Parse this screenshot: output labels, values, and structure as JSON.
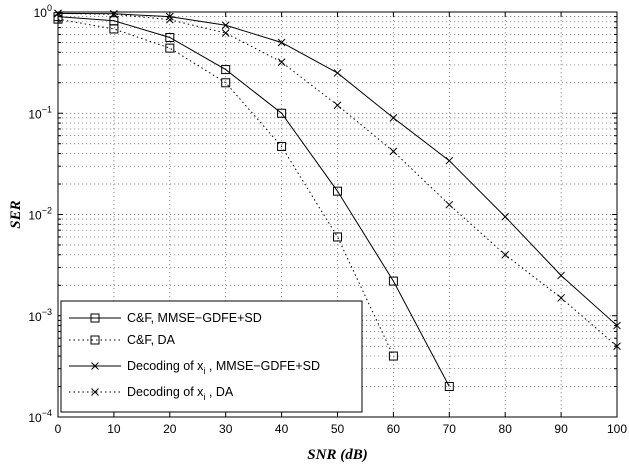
{
  "chart_data": {
    "type": "line",
    "title": "",
    "xlabel": "SNR (dB)",
    "ylabel": "SER",
    "xlim": [
      0,
      100
    ],
    "ylim": [
      0.0001,
      1
    ],
    "yscale": "log",
    "grid": true,
    "legend_position": "bottom-left",
    "x_ticks": [
      "0",
      "10",
      "20",
      "30",
      "40",
      "50",
      "60",
      "70",
      "80",
      "90",
      "100"
    ],
    "y_ticks": [
      {
        "base": "10",
        "exp": "0"
      },
      {
        "base": "10",
        "exp": "−1"
      },
      {
        "base": "10",
        "exp": "−2"
      },
      {
        "base": "10",
        "exp": "−3"
      },
      {
        "base": "10",
        "exp": "−4"
      }
    ],
    "series": [
      {
        "name": "C&F, MMSE−GDFE+SD",
        "name_parts": [
          "C&F, MMSE−GDFE+SD"
        ],
        "line": "solid",
        "marker": "square",
        "x": [
          0,
          10,
          20,
          30,
          40,
          50,
          60,
          70
        ],
        "y": [
          0.9,
          0.82,
          0.56,
          0.27,
          0.1,
          0.017,
          0.0022,
          0.0002
        ]
      },
      {
        "name": "C&F, DA",
        "name_parts": [
          "C&F, DA"
        ],
        "line": "dotted",
        "marker": "square",
        "x": [
          0,
          10,
          20,
          30,
          40,
          50,
          60
        ],
        "y": [
          0.85,
          0.68,
          0.44,
          0.2,
          0.047,
          0.006,
          0.0004
        ]
      },
      {
        "name": "Decoding of x_i , MMSE−GDFE+SD",
        "name_parts": [
          "Decoding of x",
          "i",
          " , MMSE−GDFE+SD"
        ],
        "line": "solid",
        "marker": "x",
        "x": [
          0,
          10,
          20,
          30,
          40,
          50,
          60,
          70,
          80,
          90,
          100
        ],
        "y": [
          0.97,
          0.96,
          0.9,
          0.74,
          0.5,
          0.25,
          0.09,
          0.034,
          0.0095,
          0.0025,
          0.0008
        ]
      },
      {
        "name": "Decoding of x_i , DA",
        "name_parts": [
          "Decoding of x",
          "i",
          " , DA"
        ],
        "line": "dotted",
        "marker": "x",
        "x": [
          0,
          10,
          20,
          30,
          40,
          50,
          60,
          70,
          80,
          90,
          100
        ],
        "y": [
          0.97,
          0.95,
          0.84,
          0.62,
          0.32,
          0.12,
          0.042,
          0.0125,
          0.004,
          0.0015,
          0.0005
        ]
      }
    ]
  }
}
